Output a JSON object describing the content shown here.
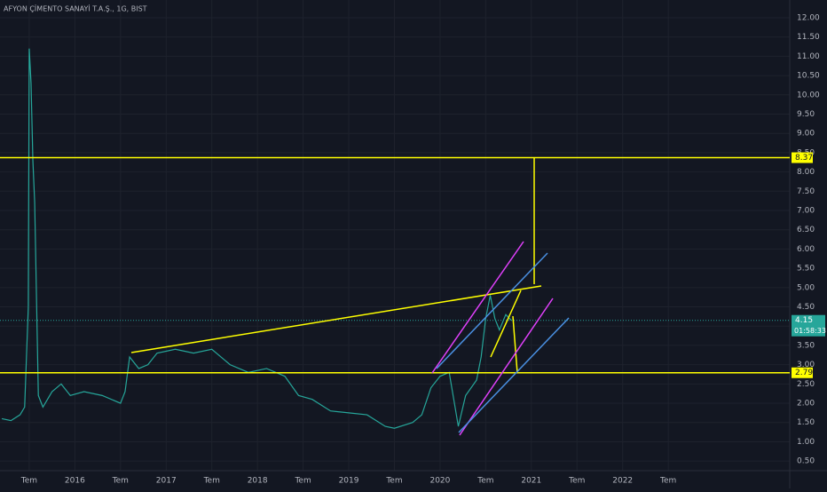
{
  "chart_data": {
    "type": "line",
    "title": "AFYON ÇİMENTO SANAYİ T.A.Ş., 1G, BIST",
    "color": "#26a69a",
    "x": [
      2015.2,
      2015.3,
      2015.4,
      2015.45,
      2015.49,
      2015.5,
      2015.52,
      2015.54,
      2015.56,
      2015.6,
      2015.65,
      2015.75,
      2015.85,
      2015.95,
      2016.1,
      2016.3,
      2016.5,
      2016.55,
      2016.6,
      2016.7,
      2016.8,
      2016.9,
      2017.1,
      2017.3,
      2017.5,
      2017.7,
      2017.9,
      2018.1,
      2018.3,
      2018.45,
      2018.6,
      2018.8,
      2019.0,
      2019.2,
      2019.4,
      2019.5,
      2019.7,
      2019.8,
      2019.9,
      2020.0,
      2020.1,
      2020.2,
      2020.28,
      2020.4,
      2020.45,
      2020.5,
      2020.55,
      2020.6,
      2020.65,
      2020.72,
      2020.78
    ],
    "values": [
      1.6,
      1.55,
      1.7,
      1.9,
      4.5,
      11.2,
      10.3,
      8.3,
      7.2,
      2.2,
      1.9,
      2.3,
      2.5,
      2.2,
      2.3,
      2.2,
      2.0,
      2.3,
      3.2,
      2.9,
      3.0,
      3.3,
      3.4,
      3.3,
      3.4,
      3.0,
      2.8,
      2.9,
      2.7,
      2.2,
      2.1,
      1.8,
      1.75,
      1.7,
      1.4,
      1.35,
      1.5,
      1.7,
      2.4,
      2.7,
      2.8,
      1.4,
      2.2,
      2.6,
      3.2,
      4.2,
      4.8,
      4.2,
      3.9,
      4.3,
      4.15
    ],
    "xlim": [
      2015.18,
      2023.83
    ],
    "xticks": [
      {
        "value": 2015.5,
        "label": "Tem"
      },
      2016,
      {
        "value": 2016.5,
        "label": "Tem"
      },
      2017,
      {
        "value": 2017.5,
        "label": "Tem"
      },
      2018,
      {
        "value": 2018.5,
        "label": "Tem"
      },
      2019,
      {
        "value": 2019.5,
        "label": "Tem"
      },
      2020,
      {
        "value": 2020.5,
        "label": "Tem"
      },
      2021,
      {
        "value": 2021.5,
        "label": "Tem"
      },
      2022,
      {
        "value": 2022.5,
        "label": "Tem"
      }
    ],
    "ylim": [
      0.25,
      12.46
    ],
    "yticks": [
      {
        "value": 0.5,
        "label": "0.50"
      },
      {
        "value": 1,
        "label": "1.00"
      },
      {
        "value": 1.5,
        "label": "1.50"
      },
      {
        "value": 2,
        "label": "2.00"
      },
      {
        "value": 2.5,
        "label": "2.50"
      },
      {
        "value": 3,
        "label": "3.00"
      },
      {
        "value": 3.5,
        "label": "3.50"
      },
      {
        "value": 4,
        "label": "4.00"
      },
      {
        "value": 4.5,
        "label": "4.50"
      },
      {
        "value": 5,
        "label": "5.00"
      },
      {
        "value": 5.5,
        "label": "5.50"
      },
      {
        "value": 6,
        "label": "6.00"
      },
      {
        "value": 6.5,
        "label": "6.50"
      },
      {
        "value": 7,
        "label": "7.00"
      },
      {
        "value": 7.5,
        "label": "7.50"
      },
      {
        "value": 8,
        "label": "8.00"
      },
      {
        "value": 8.5,
        "label": "8.50"
      },
      {
        "value": 9,
        "label": "9.00"
      },
      {
        "value": 9.5,
        "label": "9.50"
      },
      {
        "value": 10,
        "label": "10.00"
      },
      {
        "value": 10.5,
        "label": "10.50"
      },
      {
        "value": 11,
        "label": "11.00"
      },
      {
        "value": 11.5,
        "label": "11.50"
      },
      {
        "value": 12,
        "label": "12.00"
      }
    ],
    "grid": true,
    "hlines": [
      {
        "value": 8.37,
        "color": "#ffff00"
      },
      {
        "value": 2.79,
        "color": "#ffff00"
      }
    ],
    "last_price": 4.15,
    "countdown": "01:58:33"
  }
}
